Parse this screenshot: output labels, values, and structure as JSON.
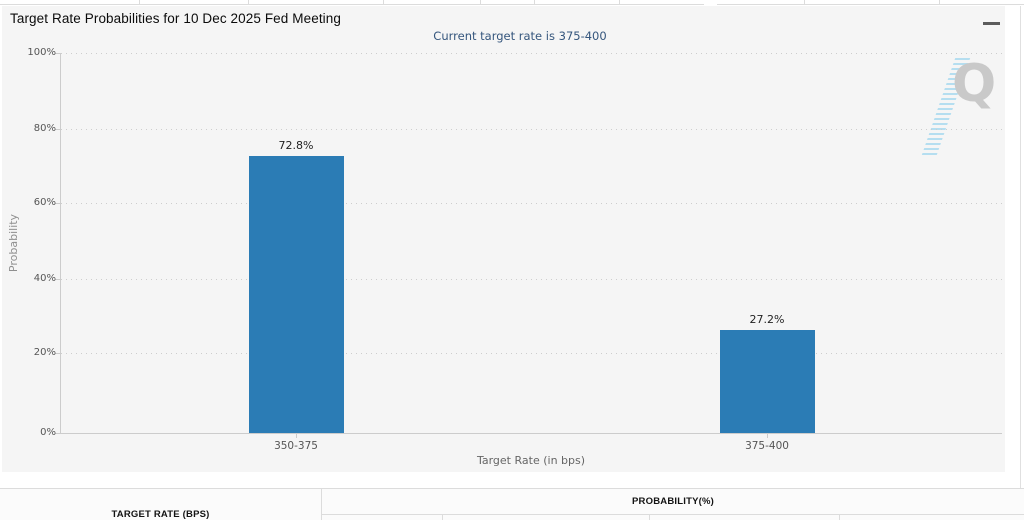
{
  "page": {
    "title": "Target Rate Probabilities for 10 Dec 2025 Fed Meeting",
    "subtitle": "Current target rate is 375-400"
  },
  "toolbar": {
    "menu_icon": "hamburger-menu-icon"
  },
  "watermark": {
    "letter": "Q"
  },
  "chart_data": {
    "type": "bar",
    "title": "Target Rate Probabilities for 10 Dec 2025 Fed Meeting",
    "subtitle": "Current target rate is 375-400",
    "categories": [
      "350-375",
      "375-400"
    ],
    "values": [
      72.8,
      27.2
    ],
    "value_labels": [
      "72.8%",
      "27.2%"
    ],
    "xlabel": "Target Rate (in bps)",
    "ylabel": "Probability",
    "ylim": [
      0,
      100
    ],
    "yticks_top_down": [
      "100%",
      "80%",
      "60%",
      "40%",
      "20%",
      "0%"
    ],
    "grid": "dotted-horizontal",
    "legend": "none",
    "bar_color": "#2b7cb5"
  },
  "table": {
    "col1_header": "TARGET RATE (BPS)",
    "col2_header": "PROBABILITY(%)"
  },
  "colors": {
    "chart_background": "#f5f5f5",
    "bar": "#2b7cb5",
    "subtitle_text": "#35567d",
    "grid_dots": "#cdcdcd",
    "border": "#dcdcdc"
  }
}
